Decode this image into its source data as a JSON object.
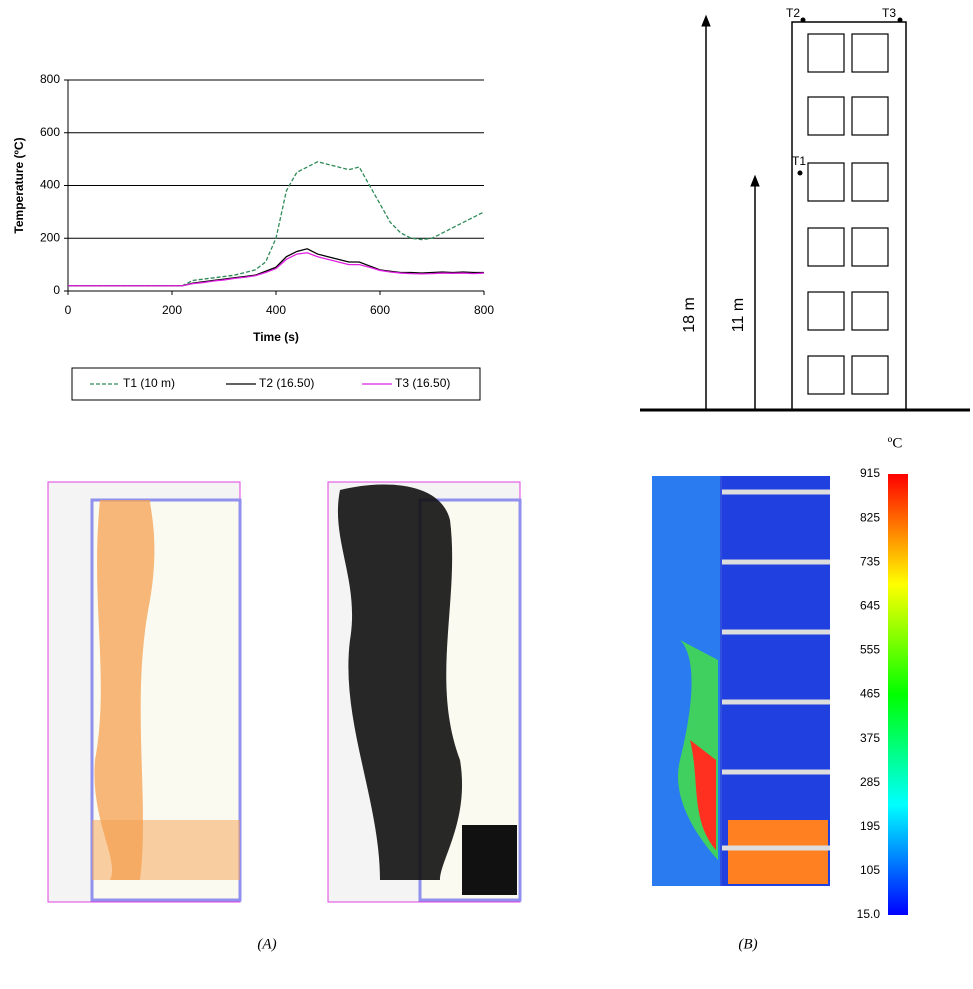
{
  "chart_data": {
    "type": "line",
    "xlabel": "Time (s)",
    "ylabel": "Temperature (ºC)",
    "x": [
      0,
      20,
      40,
      60,
      80,
      100,
      120,
      140,
      160,
      180,
      200,
      220,
      240,
      260,
      280,
      300,
      320,
      340,
      360,
      380,
      400,
      420,
      440,
      460,
      480,
      500,
      520,
      540,
      560,
      580,
      600,
      620,
      640,
      660,
      680,
      700,
      720,
      740,
      760,
      780,
      800
    ],
    "series": [
      {
        "name": "T1 (10 m)",
        "color": "#2e8b57",
        "style": "dashed",
        "values": [
          20,
          20,
          20,
          20,
          20,
          20,
          20,
          20,
          20,
          20,
          20,
          20,
          40,
          45,
          50,
          55,
          60,
          70,
          80,
          110,
          200,
          380,
          450,
          470,
          490,
          480,
          470,
          460,
          470,
          400,
          330,
          260,
          220,
          200,
          195,
          200,
          220,
          240,
          260,
          280,
          300
        ]
      },
      {
        "name": "T2 (16.50)",
        "color": "#000000",
        "style": "solid",
        "values": [
          20,
          20,
          20,
          20,
          20,
          20,
          20,
          20,
          20,
          20,
          20,
          20,
          30,
          35,
          40,
          45,
          50,
          55,
          60,
          75,
          90,
          130,
          150,
          160,
          140,
          130,
          120,
          110,
          110,
          95,
          80,
          75,
          70,
          70,
          68,
          70,
          72,
          70,
          72,
          70,
          70
        ]
      },
      {
        "name": "T3 (16.50)",
        "color": "#e020e0",
        "style": "solid",
        "values": [
          20,
          20,
          20,
          20,
          20,
          20,
          20,
          20,
          20,
          20,
          20,
          20,
          28,
          32,
          38,
          42,
          48,
          52,
          58,
          70,
          85,
          120,
          140,
          145,
          130,
          120,
          110,
          100,
          100,
          90,
          78,
          72,
          68,
          66,
          65,
          66,
          68,
          67,
          68,
          66,
          68
        ]
      }
    ],
    "xlim": [
      0,
      800
    ],
    "xticks": [
      0,
      200,
      400,
      600,
      800
    ],
    "ylim": [
      0,
      800
    ],
    "yticks": [
      0,
      200,
      400,
      600,
      800
    ],
    "grid": true
  },
  "diagram": {
    "sensors": [
      "T2",
      "T3",
      "T1"
    ],
    "heights": [
      "18 m",
      "11 m"
    ]
  },
  "colorbar": {
    "unit": "ºC",
    "lim": [
      15,
      915
    ],
    "ticks": [
      915,
      825,
      735,
      645,
      555,
      465,
      375,
      285,
      195,
      105,
      {
        "value": 15,
        "label": "15.0"
      }
    ]
  },
  "captions": [
    "(A)",
    "(B)"
  ]
}
